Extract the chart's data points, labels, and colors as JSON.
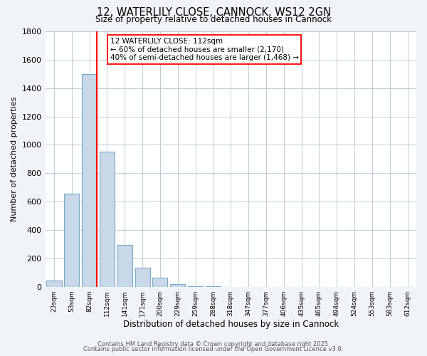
{
  "title": "12, WATERLILY CLOSE, CANNOCK, WS12 2GN",
  "subtitle": "Size of property relative to detached houses in Cannock",
  "xlabel": "Distribution of detached houses by size in Cannock",
  "ylabel": "Number of detached properties",
  "bar_labels": [
    "23sqm",
    "53sqm",
    "82sqm",
    "112sqm",
    "141sqm",
    "171sqm",
    "200sqm",
    "229sqm",
    "259sqm",
    "288sqm",
    "318sqm",
    "347sqm",
    "377sqm",
    "406sqm",
    "435sqm",
    "465sqm",
    "494sqm",
    "524sqm",
    "553sqm",
    "583sqm",
    "612sqm"
  ],
  "bar_values": [
    45,
    655,
    1500,
    950,
    295,
    135,
    65,
    20,
    5,
    2,
    0,
    0,
    0,
    0,
    0,
    0,
    0,
    0,
    0,
    0,
    0
  ],
  "bar_color": "#c8d8e8",
  "bar_edge_color": "#7aaac8",
  "vline_index": 2,
  "vline_color": "red",
  "annotation_text": "12 WATERLILY CLOSE: 112sqm\n← 60% of detached houses are smaller (2,170)\n40% of semi-detached houses are larger (1,468) →",
  "annotation_box_color": "white",
  "annotation_box_edge": "red",
  "ylim": [
    0,
    1800
  ],
  "yticks": [
    0,
    200,
    400,
    600,
    800,
    1000,
    1200,
    1400,
    1600,
    1800
  ],
  "footer1": "Contains HM Land Registry data © Crown copyright and database right 2025.",
  "footer2": "Contains public sector information licensed under the Open Government Licence v3.0.",
  "bg_color": "#f0f4f8",
  "plot_bg_color": "#ffffff"
}
